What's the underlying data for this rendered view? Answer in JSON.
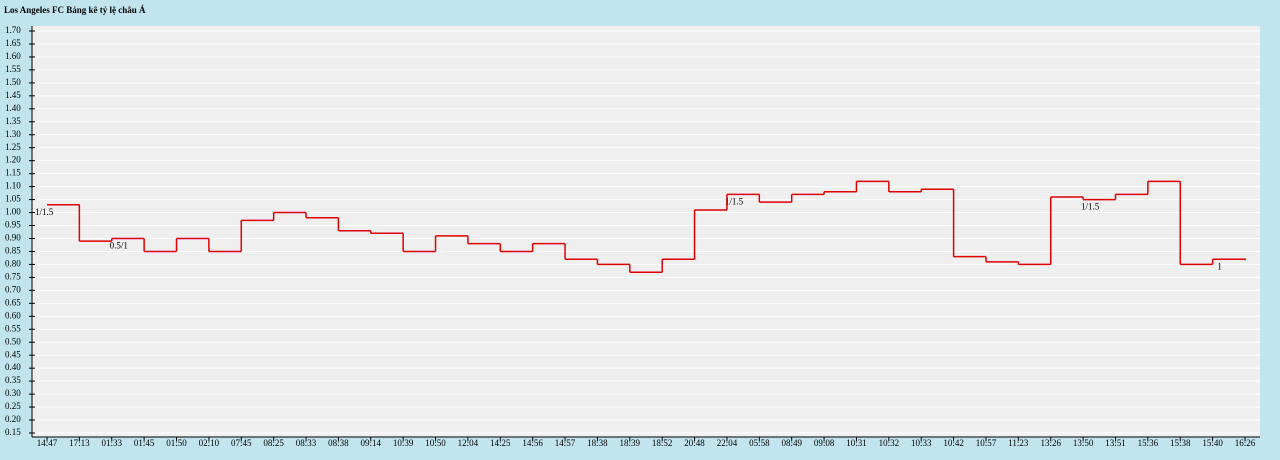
{
  "chart_data": {
    "type": "step",
    "title": "Los Angeles FC Bảng kê tỷ lệ châu Á",
    "categories": [
      "14:47",
      "17:13",
      "01:33",
      "01:45",
      "01:50",
      "02:10",
      "07:45",
      "08:25",
      "08:33",
      "08:38",
      "09:14",
      "10:39",
      "10:50",
      "12:04",
      "14:25",
      "14:56",
      "14:57",
      "18:38",
      "18:39",
      "18:52",
      "20:48",
      "22:04",
      "05:58",
      "08:49",
      "09:08",
      "10:31",
      "10:32",
      "10:33",
      "10:42",
      "10:57",
      "11:23",
      "13:26",
      "13:50",
      "13:51",
      "15:36",
      "15:38",
      "15:40",
      "16:26"
    ],
    "series": [
      {
        "color": "#e00000",
        "values": [
          1.03,
          0.89,
          0.9,
          0.85,
          0.9,
          0.85,
          0.97,
          1.0,
          0.98,
          0.93,
          0.92,
          0.85,
          0.91,
          0.88,
          0.85,
          0.88,
          0.82,
          0.8,
          0.77,
          0.82,
          1.01,
          1.07,
          1.04,
          1.07,
          1.08,
          1.12,
          1.08,
          1.09,
          0.83,
          0.81,
          0.8,
          1.06,
          1.05,
          1.07,
          1.12,
          0.8,
          0.82,
          0.82
        ]
      }
    ],
    "annotations": [
      {
        "category": "14:47",
        "text": "1/1.5"
      },
      {
        "category": "01:33",
        "text": "0.5/1"
      },
      {
        "category": "22:04",
        "text": "1/1.5"
      },
      {
        "category": "13:50",
        "text": "1/1.5"
      },
      {
        "category": "15:40",
        "text": "1"
      }
    ],
    "ylim": [
      0.15,
      1.7
    ],
    "yticks": [
      0.15,
      {
        "value": 0.2,
        "label": "0.20"
      },
      0.25,
      {
        "value": 0.3,
        "label": "0.30"
      },
      0.35,
      {
        "value": 0.4,
        "label": "0.40"
      },
      0.45,
      {
        "value": 0.5,
        "label": "0.50"
      },
      0.55,
      {
        "value": 0.6,
        "label": "0.60"
      },
      0.65,
      {
        "value": 0.7,
        "label": "0.70"
      },
      0.75,
      {
        "value": 0.8,
        "label": "0.80"
      },
      0.85,
      {
        "value": 0.9,
        "label": "0.90"
      },
      0.95,
      {
        "value": 1.0,
        "label": "1.00"
      },
      1.05,
      {
        "value": 1.1,
        "label": "1.10"
      },
      1.15,
      {
        "value": 1.2,
        "label": "1.20"
      },
      1.25,
      {
        "value": 1.3,
        "label": "1.30"
      },
      1.35,
      {
        "value": 1.4,
        "label": "1.40"
      },
      1.45,
      {
        "value": 1.5,
        "label": "1.50"
      },
      1.55,
      {
        "value": 1.6,
        "label": "1.60"
      },
      1.65,
      {
        "value": 1.7,
        "label": "1.70"
      }
    ],
    "grid": true
  }
}
